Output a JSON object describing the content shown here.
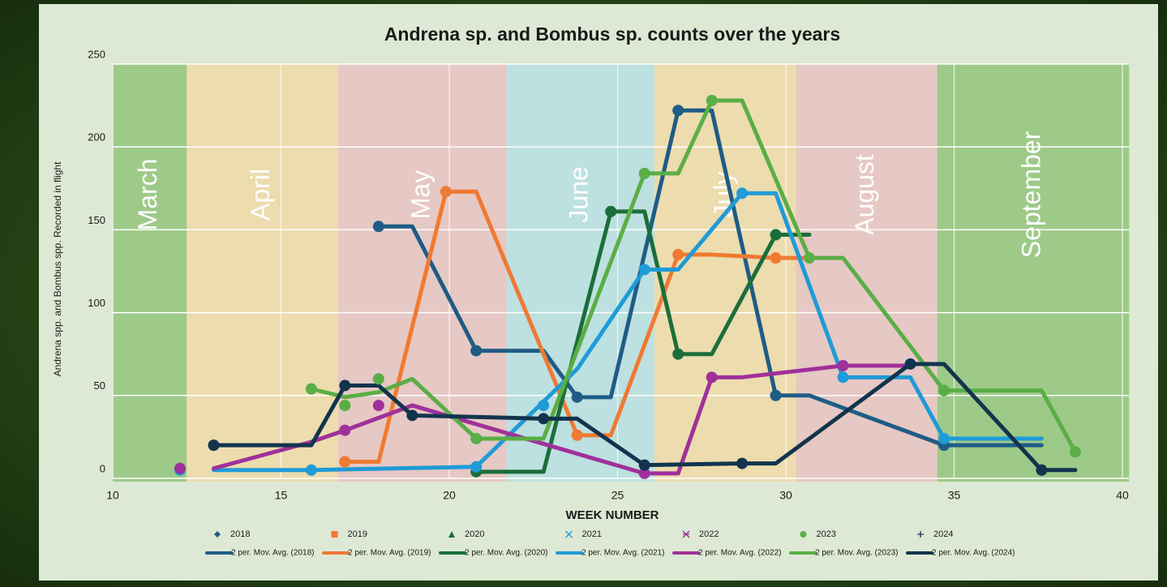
{
  "chart_data": {
    "type": "line",
    "title": "Andrena sp. and Bombus sp. counts over the years",
    "x_label": "WEEK NUMBER",
    "y_label": "Andrena spp. and Bombus spp. Recorded in flight",
    "xlim": [
      10,
      40
    ],
    "xticks": [
      10,
      15,
      20,
      25,
      30,
      35,
      40
    ],
    "ylim": [
      0,
      250
    ],
    "yticks": [
      0,
      50,
      100,
      150,
      200,
      250
    ],
    "grid": true,
    "bands": [
      {
        "label": "March",
        "start": 10,
        "end": 12.2,
        "color": "#9dca88"
      },
      {
        "label": "April",
        "start": 12.2,
        "end": 16.7,
        "color": "#ecdcae"
      },
      {
        "label": "May",
        "start": 16.7,
        "end": 21.7,
        "color": "#e6c8c4"
      },
      {
        "label": "June",
        "start": 21.7,
        "end": 26.1,
        "color": "#bde0e0"
      },
      {
        "label": "July",
        "start": 26.1,
        "end": 30.3,
        "color": "#ecdcae"
      },
      {
        "label": "August",
        "start": 30.3,
        "end": 34.5,
        "color": "#e6c8c4"
      },
      {
        "label": "September",
        "start": 34.5,
        "end": 40.2,
        "color": "#9dca88"
      }
    ],
    "series": [
      {
        "name": "2018",
        "color": "#1f5c85",
        "marker": "diamond",
        "x": [
          17.9,
          20.8,
          23.8,
          26.8,
          29.7,
          34.7
        ],
        "values": [
          152,
          77,
          49,
          222,
          50,
          20
        ],
        "trend": {
          "name": "2 per. Mov. Avg. (2018)",
          "x": [
            17.9,
            18.9,
            20.8,
            22.8,
            23.8,
            24.8,
            26.8,
            27.8,
            29.7,
            30.7,
            34.7,
            37.6
          ],
          "values": [
            152,
            152,
            77,
            77,
            49,
            49,
            222,
            222,
            50,
            50,
            20,
            20
          ]
        }
      },
      {
        "name": "2019",
        "color": "#ef7a32",
        "marker": "square",
        "x": [
          16.9,
          19.9,
          23.8,
          26.8,
          29.7
        ],
        "values": [
          10,
          173,
          26,
          135,
          133
        ],
        "trend": {
          "name": "2 per. Mov. Avg. (2019)",
          "x": [
            16.9,
            17.9,
            19.9,
            20.8,
            23.8,
            24.8,
            26.8,
            27.8,
            29.7,
            30.7
          ],
          "values": [
            10,
            10,
            173,
            173,
            26,
            26,
            135,
            135,
            133,
            133
          ]
        }
      },
      {
        "name": "2020",
        "color": "#1b6e3a",
        "marker": "triangle",
        "x": [
          20.8,
          24.8,
          26.8,
          29.7
        ],
        "values": [
          4,
          161,
          75,
          147
        ],
        "trend": {
          "name": "2 per. Mov. Avg. (2020)",
          "x": [
            20.8,
            22.8,
            24.8,
            25.8,
            26.8,
            27.8,
            29.7,
            30.7
          ],
          "values": [
            4,
            4,
            161,
            161,
            75,
            75,
            147,
            147
          ]
        }
      },
      {
        "name": "2021",
        "color": "#1f9bd7",
        "marker": "x",
        "x": [
          12.0,
          15.9,
          20.8,
          22.8,
          25.8,
          28.7,
          31.7,
          34.7
        ],
        "values": [
          5,
          5,
          7,
          44,
          126,
          172,
          61,
          24
        ],
        "trend": {
          "name": "2 per. Mov. Avg. (2021)",
          "x": [
            13.0,
            15.9,
            20.8,
            23.8,
            25.8,
            26.8,
            28.7,
            29.7,
            31.7,
            33.7,
            34.7,
            37.6
          ],
          "values": [
            5,
            5,
            7,
            66,
            126,
            126,
            172,
            172,
            61,
            61,
            24,
            24
          ]
        }
      },
      {
        "name": "2022",
        "color": "#a0309a",
        "marker": "star",
        "x": [
          12.0,
          16.9,
          17.9,
          25.8,
          27.8,
          31.7
        ],
        "values": [
          6,
          29,
          44,
          3,
          61,
          68
        ],
        "trend": {
          "name": "2 per. Mov. Avg. (2022)",
          "x": [
            13.0,
            15.9,
            16.9,
            18.9,
            25.8,
            26.8,
            27.8,
            28.7,
            31.7,
            33.7
          ],
          "values": [
            6,
            22,
            29,
            44,
            3,
            3,
            61,
            61,
            68,
            68
          ]
        }
      },
      {
        "name": "2023",
        "color": "#5aae45",
        "marker": "circle",
        "x": [
          15.9,
          16.9,
          17.9,
          20.8,
          25.8,
          27.8,
          30.7,
          34.7,
          38.6
        ],
        "values": [
          54,
          44,
          60,
          24,
          184,
          228,
          133,
          53,
          16
        ],
        "trend": {
          "name": "2 per. Mov. Avg. (2023)",
          "x": [
            15.9,
            16.9,
            17.9,
            18.9,
            20.8,
            22.8,
            25.8,
            26.8,
            27.8,
            28.7,
            30.7,
            31.7,
            34.7,
            37.6,
            38.6
          ],
          "values": [
            54,
            49,
            52,
            60,
            24,
            24,
            184,
            184,
            228,
            228,
            133,
            133,
            53,
            53,
            16
          ]
        }
      },
      {
        "name": "2024",
        "color": "#12344d",
        "marker": "plus",
        "x": [
          13.0,
          16.9,
          18.9,
          22.8,
          25.8,
          28.7,
          33.7,
          37.6
        ],
        "values": [
          20,
          56,
          38,
          36,
          8,
          9,
          69,
          5
        ],
        "trend": {
          "name": "2 per. Mov. Avg. (2024)",
          "x": [
            13.0,
            15.9,
            16.9,
            17.9,
            18.9,
            22.8,
            23.8,
            25.8,
            28.7,
            29.7,
            33.7,
            34.7,
            37.6,
            38.6
          ],
          "values": [
            20,
            20,
            56,
            56,
            38,
            36,
            36,
            8,
            9,
            9,
            69,
            69,
            5,
            5
          ]
        }
      }
    ]
  }
}
